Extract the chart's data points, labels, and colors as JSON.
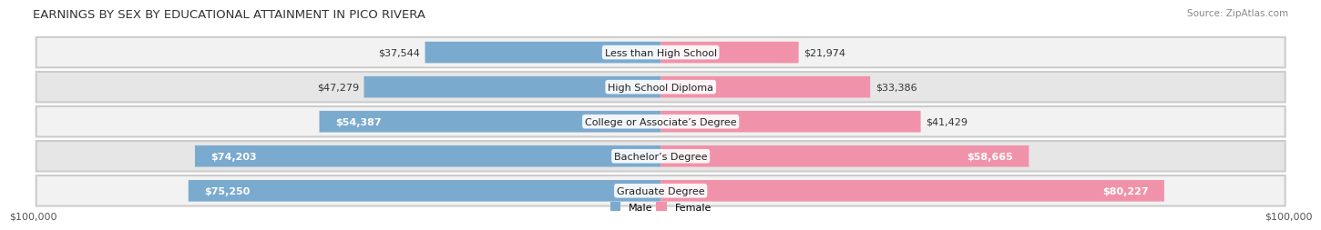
{
  "title": "EARNINGS BY SEX BY EDUCATIONAL ATTAINMENT IN PICO RIVERA",
  "source": "Source: ZipAtlas.com",
  "categories": [
    "Less than High School",
    "High School Diploma",
    "College or Associate’s Degree",
    "Bachelor’s Degree",
    "Graduate Degree"
  ],
  "male_values": [
    37544,
    47279,
    54387,
    74203,
    75250
  ],
  "female_values": [
    21974,
    33386,
    41429,
    58665,
    80227
  ],
  "male_color": "#7baacf",
  "female_color": "#f093aa",
  "row_bg_light": "#f2f2f2",
  "row_bg_dark": "#e6e6e6",
  "bg_color": "#ffffff",
  "max_value": 100000,
  "xlabel_left": "$100,000",
  "xlabel_right": "$100,000",
  "legend_male": "Male",
  "legend_female": "Female",
  "title_fontsize": 9.5,
  "source_fontsize": 7.5,
  "label_fontsize": 8,
  "category_fontsize": 8,
  "inside_label_threshold": 50000
}
